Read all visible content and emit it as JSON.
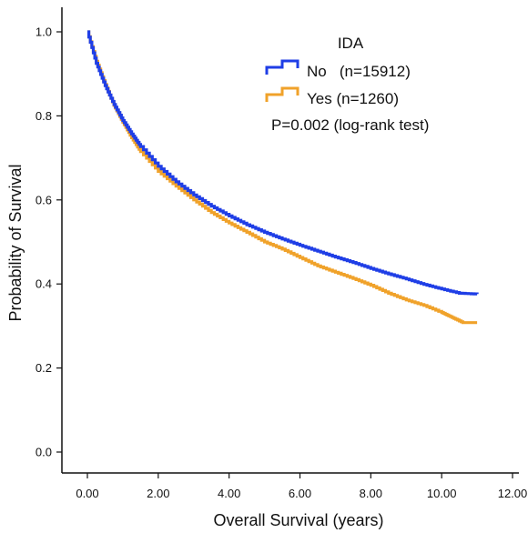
{
  "chart_data": {
    "type": "line",
    "title": "",
    "xlabel": "Overall Survival (years)",
    "ylabel": "Probability of Survival",
    "xlim": [
      0,
      12
    ],
    "ylim": [
      0,
      1.0
    ],
    "x_ticks": [
      "0.00",
      "2.00",
      "4.00",
      "6.00",
      "8.00",
      "10.00",
      "12.00"
    ],
    "y_ticks": [
      "0.0",
      "0.2",
      "0.4",
      "0.6",
      "0.8",
      "1.0"
    ],
    "grid": false,
    "step": true,
    "legend": {
      "title": "IDA",
      "placement": "top-right",
      "entries": [
        "No   (n=15912)",
        "Yes (n=1260)"
      ],
      "note": "P=0.002 (log-rank test)"
    },
    "series": [
      {
        "name": "No",
        "label": "No   (n=15912)",
        "color": "#1f3ee6",
        "x": [
          0,
          0.25,
          0.5,
          0.75,
          1.0,
          1.25,
          1.5,
          2.0,
          2.5,
          3.0,
          3.5,
          4.0,
          4.5,
          5.0,
          5.5,
          6.0,
          6.5,
          7.0,
          7.5,
          8.0,
          8.5,
          9.0,
          9.5,
          10.0,
          10.5,
          11.0
        ],
        "y": [
          1.0,
          0.925,
          0.872,
          0.827,
          0.789,
          0.757,
          0.727,
          0.68,
          0.643,
          0.612,
          0.585,
          0.562,
          0.541,
          0.523,
          0.507,
          0.492,
          0.478,
          0.464,
          0.451,
          0.437,
          0.424,
          0.412,
          0.399,
          0.388,
          0.378,
          0.376
        ]
      },
      {
        "name": "Yes",
        "label": "Yes (n=1260)",
        "color": "#f0a22a",
        "x": [
          0,
          0.25,
          0.5,
          0.75,
          1.0,
          1.25,
          1.5,
          2.0,
          2.5,
          3.0,
          3.5,
          4.0,
          4.5,
          5.0,
          5.5,
          6.0,
          6.5,
          7.0,
          7.5,
          8.0,
          8.5,
          9.0,
          9.5,
          10.0,
          10.3,
          10.6,
          11.0
        ],
        "y": [
          1.0,
          0.93,
          0.875,
          0.825,
          0.785,
          0.748,
          0.715,
          0.668,
          0.633,
          0.6,
          0.57,
          0.545,
          0.523,
          0.5,
          0.483,
          0.463,
          0.443,
          0.428,
          0.413,
          0.397,
          0.378,
          0.362,
          0.349,
          0.332,
          0.32,
          0.308,
          0.308
        ]
      }
    ]
  }
}
